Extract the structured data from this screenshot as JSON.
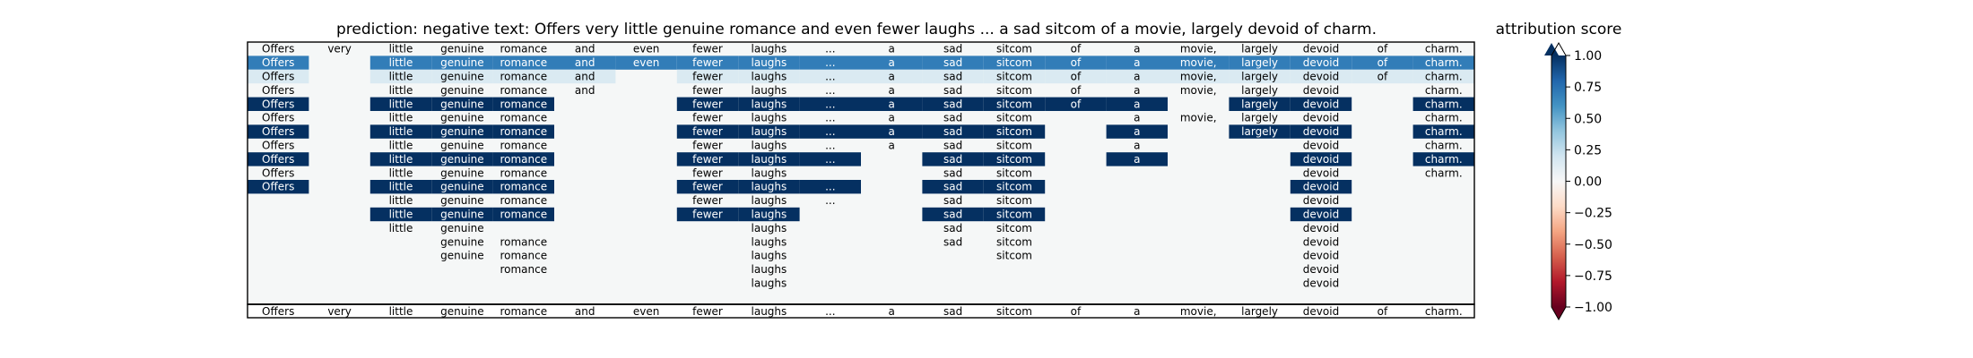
{
  "chart_data": {
    "type": "heatmap",
    "title": "prediction:  negative     text:  Offers very little genuine romance and even fewer laughs ... a sad sitcom of a movie, largely devoid of charm.",
    "xlabel": "",
    "ylabel": "",
    "tokens": [
      "Offers",
      "very",
      "little",
      "genuine",
      "romance",
      "and",
      "even",
      "fewer",
      "laughs",
      "...",
      "a",
      "sad",
      "sitcom",
      "of",
      "a",
      "movie,",
      "largely",
      "devoid",
      "of",
      "charm."
    ],
    "row_tokens": [
      [
        0,
        1,
        2,
        3,
        4,
        5,
        6,
        7,
        8,
        9,
        10,
        11,
        12,
        13,
        14,
        15,
        16,
        17,
        18,
        19
      ],
      [
        0,
        2,
        3,
        4,
        5,
        6,
        7,
        8,
        9,
        10,
        11,
        12,
        13,
        14,
        15,
        16,
        17,
        18,
        19
      ],
      [
        0,
        2,
        3,
        4,
        5,
        7,
        8,
        9,
        10,
        11,
        12,
        13,
        14,
        15,
        16,
        17,
        18,
        19
      ],
      [
        0,
        2,
        3,
        4,
        5,
        7,
        8,
        9,
        10,
        11,
        12,
        13,
        14,
        15,
        16,
        17,
        19
      ],
      [
        0,
        2,
        3,
        4,
        7,
        8,
        9,
        10,
        11,
        12,
        13,
        14,
        16,
        17,
        19
      ],
      [
        0,
        2,
        3,
        4,
        7,
        8,
        9,
        10,
        11,
        12,
        14,
        15,
        16,
        17,
        19
      ],
      [
        0,
        2,
        3,
        4,
        7,
        8,
        9,
        10,
        11,
        12,
        14,
        16,
        17,
        19
      ],
      [
        0,
        2,
        3,
        4,
        7,
        8,
        9,
        10,
        11,
        12,
        14,
        17,
        19
      ],
      [
        0,
        2,
        3,
        4,
        7,
        8,
        9,
        11,
        12,
        14,
        17,
        19
      ],
      [
        0,
        2,
        3,
        4,
        7,
        8,
        11,
        12,
        17,
        19
      ],
      [
        0,
        2,
        3,
        4,
        7,
        8,
        9,
        11,
        12,
        17
      ],
      [
        2,
        3,
        4,
        7,
        8,
        9,
        11,
        12,
        17
      ],
      [
        2,
        3,
        4,
        7,
        8,
        11,
        12,
        17
      ],
      [
        2,
        3,
        8,
        11,
        12,
        17
      ],
      [
        3,
        4,
        8,
        11,
        12,
        17
      ],
      [
        3,
        4,
        8,
        12,
        17
      ],
      [
        4,
        8,
        17
      ],
      [
        8,
        17
      ]
    ],
    "row_values": [
      [
        0,
        0,
        0,
        0,
        0,
        0,
        0,
        0,
        0,
        0,
        0,
        0,
        0,
        0,
        0,
        0,
        0,
        0,
        0,
        0
      ],
      [
        0.7,
        0.7,
        0.7,
        0.7,
        0.7,
        0.7,
        0.7,
        0.7,
        0.7,
        0.7,
        0.7,
        0.7,
        0.7,
        0.7,
        0.7,
        0.7,
        0.7,
        0.7,
        0.7
      ],
      [
        0.15,
        0.15,
        0.15,
        0.15,
        0.15,
        0.15,
        0.15,
        0.15,
        0.15,
        0.15,
        0.15,
        0.15,
        0.15,
        0.15,
        0.15,
        0.15,
        0.15,
        0.15
      ],
      [
        0,
        0,
        0,
        0,
        0,
        0,
        0,
        0,
        0,
        0,
        0,
        0,
        0,
        0,
        0,
        0,
        0
      ],
      [
        1,
        1,
        1,
        1,
        1,
        1,
        1,
        1,
        1,
        1,
        1,
        1,
        1,
        1,
        1
      ],
      [
        0,
        0,
        0,
        0,
        0,
        0,
        0,
        0,
        0,
        0,
        0,
        0,
        0,
        0,
        0
      ],
      [
        1,
        1,
        1,
        1,
        1,
        1,
        1,
        1,
        1,
        1,
        1,
        1,
        1,
        1
      ],
      [
        0,
        0,
        0,
        0,
        0,
        0,
        0,
        0,
        0,
        0,
        0,
        0,
        0
      ],
      [
        1,
        1,
        1,
        1,
        1,
        1,
        1,
        1,
        1,
        1,
        1,
        1
      ],
      [
        0,
        0,
        0,
        0,
        0,
        0,
        0,
        0,
        0,
        0
      ],
      [
        1,
        1,
        1,
        1,
        1,
        1,
        1,
        1,
        1,
        1
      ],
      [
        0,
        0,
        0,
        0,
        0,
        0,
        0,
        0,
        0
      ],
      [
        1,
        1,
        1,
        1,
        1,
        1,
        1,
        1
      ],
      [
        0,
        0,
        0,
        0,
        0,
        0
      ],
      [
        0,
        0,
        0,
        0,
        0,
        0
      ],
      [
        0,
        0,
        0,
        0,
        0
      ],
      [
        0,
        0,
        0
      ],
      [
        0,
        0
      ]
    ],
    "colorbar": {
      "label": "attribution score",
      "range": [
        -1.0,
        1.0
      ],
      "ticks": [
        -1.0,
        -0.75,
        -0.5,
        -0.25,
        0.0,
        0.25,
        0.5,
        0.75,
        1.0
      ],
      "tick_labels": [
        "−1.00",
        "−0.75",
        "−0.50",
        "−0.25",
        "0.00",
        "0.25",
        "0.50",
        "0.75",
        "1.00"
      ],
      "colormap": "RdBu",
      "extend": "both"
    },
    "grid": false
  }
}
